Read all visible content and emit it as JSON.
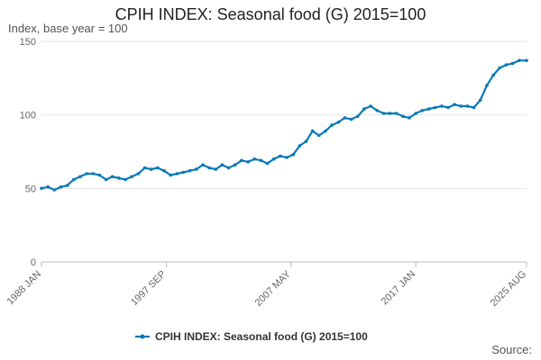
{
  "chart_data": {
    "type": "line",
    "title": "CPIH INDEX: Seasonal food (G) 2015=100",
    "ylabel": "Index, base year = 100",
    "xlabel": "",
    "source_label": "Source:",
    "ylim": [
      0,
      150
    ],
    "y_ticks": [
      0,
      50,
      100,
      150
    ],
    "x_tick_labels": [
      "1988 JAN",
      "1997 SEP",
      "2007 MAY",
      "2017 JAN",
      "2025 AUG"
    ],
    "x_tick_years": [
      1988.0,
      1997.67,
      2007.33,
      2017.0,
      2025.58
    ],
    "x_range": [
      1988.0,
      2025.58
    ],
    "legend": "bottom-center",
    "series": [
      {
        "name": "CPIH INDEX: Seasonal food (G) 2015=100",
        "color": "#0a7ab7",
        "x": [
          1988.0,
          1988.5,
          1989.0,
          1989.5,
          1990.0,
          1990.5,
          1991.0,
          1991.5,
          1992.0,
          1992.5,
          1993.0,
          1993.5,
          1994.0,
          1994.5,
          1995.0,
          1995.5,
          1996.0,
          1996.5,
          1997.0,
          1997.5,
          1998.0,
          1998.5,
          1999.0,
          1999.5,
          2000.0,
          2000.5,
          2001.0,
          2001.5,
          2002.0,
          2002.5,
          2003.0,
          2003.5,
          2004.0,
          2004.5,
          2005.0,
          2005.5,
          2006.0,
          2006.5,
          2007.0,
          2007.5,
          2008.0,
          2008.5,
          2009.0,
          2009.5,
          2010.0,
          2010.5,
          2011.0,
          2011.5,
          2012.0,
          2012.5,
          2013.0,
          2013.5,
          2014.0,
          2014.5,
          2015.0,
          2015.5,
          2016.0,
          2016.5,
          2017.0,
          2017.5,
          2018.0,
          2018.5,
          2019.0,
          2019.5,
          2020.0,
          2020.5,
          2021.0,
          2021.5,
          2022.0,
          2022.5,
          2023.0,
          2023.5,
          2024.0,
          2024.5,
          2025.0,
          2025.58
        ],
        "values": [
          50,
          51,
          49,
          51,
          52,
          56,
          58,
          60,
          60,
          59,
          56,
          58,
          57,
          56,
          58,
          60,
          64,
          63,
          64,
          62,
          59,
          60,
          61,
          62,
          63,
          66,
          64,
          63,
          66,
          64,
          66,
          69,
          68,
          70,
          69,
          67,
          70,
          72,
          71,
          73,
          79,
          82,
          89,
          86,
          89,
          93,
          95,
          98,
          97,
          99,
          104,
          106,
          103,
          101,
          101,
          101,
          99,
          98,
          101,
          103,
          104,
          105,
          106,
          105,
          107,
          106,
          106,
          105,
          110,
          120,
          127,
          132,
          134,
          135,
          137,
          137
        ]
      }
    ]
  }
}
